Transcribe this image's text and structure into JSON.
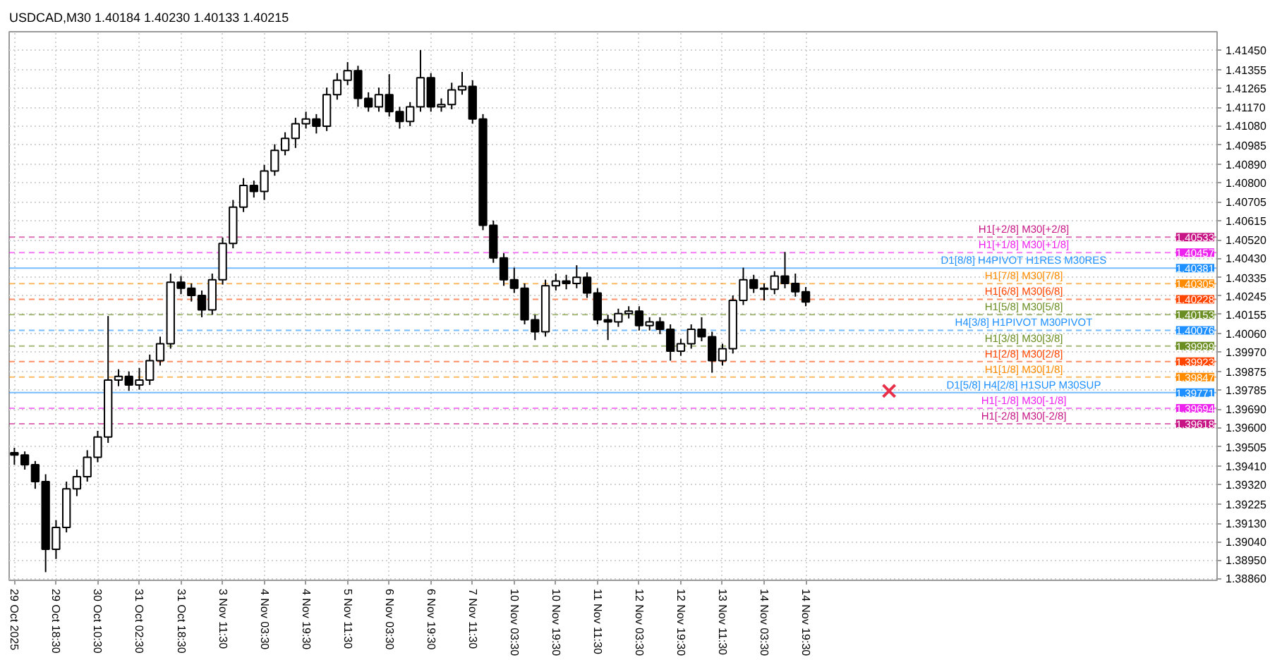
{
  "chart_data": {
    "type": "candlestick",
    "title": "USDCAD,M30  1.40184 1.40230 1.40133 1.40215",
    "color": "#000000",
    "categories": [
      "29 Oct 2025",
      null,
      null,
      null,
      "29 Oct 18:30",
      null,
      null,
      null,
      "30 Oct 10:30",
      null,
      null,
      null,
      "31 Oct 02:30",
      null,
      null,
      null,
      "31 Oct 18:30",
      null,
      null,
      null,
      "3 Nov 11:30",
      null,
      null,
      null,
      "4 Nov 03:30",
      null,
      null,
      null,
      "4 Nov 19:30",
      null,
      null,
      null,
      "5 Nov 11:30",
      null,
      null,
      null,
      "6 Nov 03:30",
      null,
      null,
      null,
      "6 Nov 19:30",
      null,
      null,
      null,
      "7 Nov 11:30",
      null,
      null,
      null,
      "10 Nov 03:30",
      null,
      null,
      null,
      "10 Nov 19:30",
      null,
      null,
      null,
      "11 Nov 11:30",
      null,
      null,
      null,
      "12 Nov 03:30",
      null,
      null,
      null,
      "12 Nov 19:30",
      null,
      null,
      null,
      "13 Nov 11:30",
      null,
      null,
      null,
      "14 Nov 03:30",
      null,
      null,
      null,
      "14 Nov 19:30",
      null,
      null,
      null,
      null,
      null,
      null,
      null,
      null,
      null,
      null,
      null,
      null,
      null,
      null,
      null,
      null,
      null,
      null,
      null,
      null,
      null,
      null,
      null,
      null,
      null,
      null,
      null,
      null,
      null,
      null,
      null,
      null,
      null,
      null,
      null,
      null,
      null,
      null,
      null
    ],
    "ohlc": [
      [
        1.39476,
        1.395,
        1.39417,
        1.39465
      ],
      [
        1.39465,
        1.39482,
        1.39393,
        1.39417
      ],
      [
        1.39417,
        1.39435,
        1.39299,
        1.39334
      ],
      [
        1.39334,
        1.3937,
        1.3889,
        1.39002
      ],
      [
        1.39002,
        1.39145,
        1.38955,
        1.39109
      ],
      [
        1.39109,
        1.39334,
        1.39085,
        1.39299
      ],
      [
        1.39299,
        1.39393,
        1.39263,
        1.39358
      ],
      [
        1.39358,
        1.39488,
        1.39334,
        1.39453
      ],
      [
        1.39453,
        1.39583,
        1.39429,
        1.39553
      ],
      [
        1.39553,
        1.40146,
        1.39524,
        1.39832
      ],
      [
        1.39832,
        1.39885,
        1.39802,
        1.3985
      ],
      [
        1.3985,
        1.39874,
        1.39779,
        1.39808
      ],
      [
        1.39808,
        1.39891,
        1.39785,
        1.39832
      ],
      [
        1.39832,
        1.39957,
        1.39808,
        1.39927
      ],
      [
        1.39927,
        1.40045,
        1.39903,
        1.4001
      ],
      [
        1.4001,
        1.40354,
        1.39986,
        1.40312
      ],
      [
        1.40312,
        1.40342,
        1.40253,
        1.40282
      ],
      [
        1.40282,
        1.40306,
        1.40217,
        1.40247
      ],
      [
        1.40247,
        1.40271,
        1.4014,
        1.40176
      ],
      [
        1.40176,
        1.40354,
        1.40152,
        1.40324
      ],
      [
        1.40324,
        1.40531,
        1.403,
        1.40502
      ],
      [
        1.40502,
        1.40715,
        1.40478,
        1.4068
      ],
      [
        1.4068,
        1.40822,
        1.40656,
        1.40786
      ],
      [
        1.40786,
        1.4081,
        1.40727,
        1.40757
      ],
      [
        1.40757,
        1.40887,
        1.40715,
        1.40857
      ],
      [
        1.40857,
        1.40988,
        1.40834,
        1.40958
      ],
      [
        1.40958,
        1.41047,
        1.40934,
        1.41017
      ],
      [
        1.41017,
        1.41118,
        1.4097,
        1.41089
      ],
      [
        1.41089,
        1.41148,
        1.41065,
        1.41112
      ],
      [
        1.41112,
        1.41136,
        1.41041,
        1.41077
      ],
      [
        1.41077,
        1.41266,
        1.41053,
        1.41231
      ],
      [
        1.41231,
        1.41337,
        1.41207,
        1.41302
      ],
      [
        1.41302,
        1.41391,
        1.41278,
        1.41349
      ],
      [
        1.41349,
        1.41373,
        1.41172,
        1.41213
      ],
      [
        1.41213,
        1.41243,
        1.41148,
        1.41172
      ],
      [
        1.41172,
        1.41266,
        1.41148,
        1.41231
      ],
      [
        1.41231,
        1.41332,
        1.41124,
        1.41148
      ],
      [
        1.41148,
        1.41172,
        1.41065,
        1.411
      ],
      [
        1.411,
        1.41195,
        1.41077,
        1.41172
      ],
      [
        1.41172,
        1.4145,
        1.41148,
        1.41314
      ],
      [
        1.41314,
        1.41337,
        1.41148,
        1.41172
      ],
      [
        1.41172,
        1.41213,
        1.41148,
        1.41183
      ],
      [
        1.41183,
        1.4129,
        1.4116,
        1.41255
      ],
      [
        1.41255,
        1.41343,
        1.41231,
        1.41272
      ],
      [
        1.41272,
        1.41302,
        1.41089,
        1.41112
      ],
      [
        1.41112,
        1.41136,
        1.40567,
        1.40591
      ],
      [
        1.40591,
        1.40614,
        1.40407,
        1.40431
      ],
      [
        1.40431,
        1.40454,
        1.40294,
        1.40324
      ],
      [
        1.40324,
        1.40383,
        1.40259,
        1.40282
      ],
      [
        1.40282,
        1.40306,
        1.40105,
        1.40128
      ],
      [
        1.40128,
        1.40152,
        1.40028,
        1.40069
      ],
      [
        1.40069,
        1.40324,
        1.40045,
        1.40294
      ],
      [
        1.40294,
        1.40354,
        1.40271,
        1.40318
      ],
      [
        1.40318,
        1.40348,
        1.40277,
        1.40306
      ],
      [
        1.40306,
        1.40395,
        1.40282,
        1.40336
      ],
      [
        1.40336,
        1.4036,
        1.40235,
        1.40259
      ],
      [
        1.40259,
        1.40282,
        1.40105,
        1.40128
      ],
      [
        1.40128,
        1.40152,
        1.40028,
        1.40117
      ],
      [
        1.40117,
        1.40182,
        1.40093,
        1.40158
      ],
      [
        1.40158,
        1.40194,
        1.40134,
        1.4017
      ],
      [
        1.4017,
        1.40194,
        1.40075,
        1.40099
      ],
      [
        1.40099,
        1.4014,
        1.40075,
        1.40117
      ],
      [
        1.40117,
        1.4014,
        1.40057,
        1.40081
      ],
      [
        1.40081,
        1.40105,
        1.39927,
        1.39974
      ],
      [
        1.39974,
        1.40034,
        1.39951,
        1.4001
      ],
      [
        1.4001,
        1.40105,
        1.39986,
        1.40081
      ],
      [
        1.40081,
        1.4014,
        1.40022,
        1.40045
      ],
      [
        1.40045,
        1.40069,
        1.39868,
        1.39927
      ],
      [
        1.39927,
        1.4001,
        1.39903,
        1.39986
      ],
      [
        1.39986,
        1.40247,
        1.39962,
        1.40223
      ],
      [
        1.40223,
        1.40383,
        1.402,
        1.40324
      ],
      [
        1.40324,
        1.40348,
        1.40259,
        1.40282
      ],
      [
        1.40282,
        1.40306,
        1.40223,
        1.40277
      ],
      [
        1.40277,
        1.40366,
        1.40253,
        1.40342
      ],
      [
        1.40342,
        1.4046,
        1.40282,
        1.40306
      ],
      [
        1.40306,
        1.40354,
        1.40241,
        1.40265
      ],
      [
        1.40265,
        1.40288,
        1.40194,
        1.40215
      ],
      null,
      null,
      null,
      null,
      null,
      null,
      null,
      null,
      null,
      null,
      null,
      null,
      null,
      null,
      null,
      null,
      null,
      null,
      null,
      null,
      null,
      null,
      null,
      null,
      null,
      null,
      null,
      null,
      null,
      null,
      null,
      null,
      null,
      null,
      null,
      null,
      null,
      null,
      null
    ],
    "series": [
      {
        "type": "scatter",
        "color": "#e8304a",
        "marker": "cross",
        "values": [
          null,
          null,
          null,
          null,
          null,
          null,
          null,
          null,
          null,
          null,
          null,
          null,
          null,
          null,
          null,
          null,
          null,
          null,
          null,
          null,
          null,
          null,
          null,
          null,
          null,
          null,
          null,
          null,
          null,
          null,
          null,
          null,
          null,
          null,
          null,
          null,
          null,
          null,
          null,
          null,
          null,
          null,
          null,
          null,
          null,
          null,
          null,
          null,
          null,
          null,
          null,
          null,
          null,
          null,
          null,
          null,
          null,
          null,
          null,
          null,
          null,
          null,
          null,
          null,
          null,
          null,
          null,
          null,
          null,
          null,
          null,
          null,
          null,
          null,
          null,
          null,
          null,
          null,
          null,
          null,
          null,
          null,
          null,
          null,
          1.39779,
          null,
          null,
          null,
          null,
          null,
          null,
          null,
          null,
          null,
          null,
          null,
          null,
          null,
          null,
          null,
          null,
          null,
          null,
          null,
          null,
          null,
          null,
          null,
          null,
          null,
          null,
          null,
          null,
          null,
          null,
          null
        ]
      }
    ],
    "ylim": [
      1.3885,
      1.4154
    ],
    "yticks": [
      {
        "value": 1.3886,
        "label": "1.38860"
      },
      {
        "value": 1.3895,
        "label": "1.38950"
      },
      {
        "value": 1.3904,
        "label": "1.39040"
      },
      {
        "value": 1.3913,
        "label": "1.39130"
      },
      1.39225,
      {
        "value": 1.3932,
        "label": "1.39320"
      },
      {
        "value": 1.3941,
        "label": "1.39410"
      },
      1.39505,
      {
        "value": 1.396,
        "label": "1.39600"
      },
      {
        "value": 1.3969,
        "label": "1.39690"
      },
      1.39785,
      1.39875,
      {
        "value": 1.3997,
        "label": "1.39970"
      },
      {
        "value": 1.4006,
        "label": "1.40060"
      },
      1.40155,
      1.40245,
      1.40335,
      {
        "value": 1.4043,
        "label": "1.40430"
      },
      {
        "value": 1.4052,
        "label": "1.40520"
      },
      1.40615,
      1.40705,
      {
        "value": 1.408,
        "label": "1.40800"
      },
      {
        "value": 1.4089,
        "label": "1.40890"
      },
      1.40985,
      {
        "value": 1.4108,
        "label": "1.41080"
      },
      {
        "value": 1.4117,
        "label": "1.41170"
      },
      1.41265,
      1.41355,
      {
        "value": 1.4145,
        "label": "1.41450"
      }
    ],
    "grid": true,
    "ref_lines": [
      {
        "axis": "y",
        "value": 1.40533,
        "label": "H1[+2/8] M30[+2/8]",
        "color": "#c71585",
        "line_style": "dashed"
      },
      {
        "axis": "y",
        "value": 1.40457,
        "label": "H1[+1/8] M30[+1/8]",
        "color": "#ee22ee",
        "line_style": "dashed"
      },
      {
        "axis": "y",
        "value": 1.40381,
        "label": "D1[8/8] H4PIVOT H1RES M30RES",
        "color": "#1e90ff",
        "line_style": "solid"
      },
      {
        "axis": "y",
        "value": 1.40305,
        "label": "H1[7/8] M30[7/8]",
        "color": "#ff8c00",
        "line_style": "dashed"
      },
      {
        "axis": "y",
        "value": 1.40228,
        "label": "H1[6/8] M30[6/8]",
        "color": "#ff4500",
        "line_style": "dashed"
      },
      {
        "axis": "y",
        "value": 1.40153,
        "label": "H1[5/8] M30[5/8]",
        "color": "#6b8e23",
        "line_style": "dashed"
      },
      {
        "axis": "y",
        "value": 1.40076,
        "label": "H4[3/8] H1PIVOT M30PIVOT",
        "color": "#1e90ff",
        "line_style": "dashed"
      },
      {
        "axis": "y",
        "value": 1.39999,
        "label": "H1[3/8] M30[3/8]",
        "color": "#6b8e23",
        "line_style": "dashed"
      },
      {
        "axis": "y",
        "value": 1.39923,
        "label": "H1[2/8] M30[2/8]",
        "color": "#ff4500",
        "line_style": "dashed"
      },
      {
        "axis": "y",
        "value": 1.39847,
        "label": "H1[1/8] M30[1/8]",
        "color": "#ff8c00",
        "line_style": "dashed"
      },
      {
        "axis": "y",
        "value": 1.39771,
        "label": "D1[5/8] H4[2/8] H1SUP M30SUP",
        "color": "#1e90ff",
        "line_style": "solid"
      },
      {
        "axis": "y",
        "value": 1.39694,
        "label": "H1[-1/8] M30[-1/8]",
        "color": "#ee22ee",
        "line_style": "dashed"
      },
      {
        "axis": "y",
        "value": 1.39618,
        "label": "H1[-2/8] M30[-2/8]",
        "color": "#c71585",
        "line_style": "dashed"
      }
    ],
    "annotations": [
      {
        "text": "1.40533",
        "y": 1.40533
      },
      {
        "text": "1.40457",
        "y": 1.40457
      },
      {
        "text": "1.40381",
        "y": 1.40381
      },
      {
        "text": "1.40305",
        "y": 1.40305
      },
      {
        "text": "1.40228",
        "y": 1.40228
      },
      {
        "text": "1.40153",
        "y": 1.40153
      },
      {
        "text": "1.40076",
        "y": 1.40076
      },
      {
        "text": "1.39999",
        "y": 1.39999
      },
      {
        "text": "1.39923",
        "y": 1.39923
      },
      {
        "text": "1.39847",
        "y": 1.39847
      },
      {
        "text": "1.39771",
        "y": 1.39771
      },
      {
        "text": "1.39694",
        "y": 1.39694
      },
      {
        "text": "1.39618",
        "y": 1.39618
      }
    ]
  }
}
